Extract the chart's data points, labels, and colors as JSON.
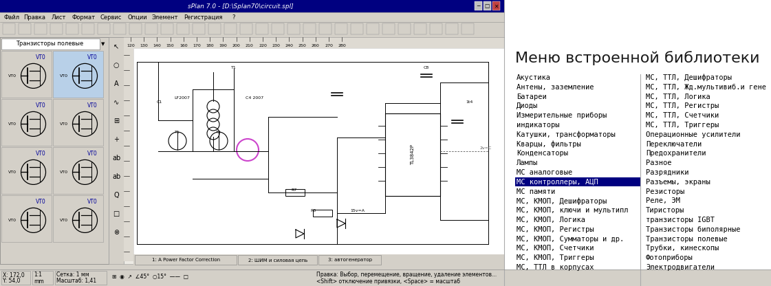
{
  "title": "Меню встроенной библиотеки",
  "title_fontsize": 16,
  "title_color": "#1a1a1a",
  "bg_color": "#d4d0c8",
  "window_title": "sPlan 7.0 - [D:\\Splan70\\circuit.spl]",
  "window_bg": "#d4d0c8",
  "left_column": [
    "Акустика",
    "Антены, заземление",
    "Батареи",
    "Диоды",
    "Измерительные приборы",
    "индикаторы",
    "Катушки, трансформаторы",
    "Кварцы, фильтры",
    "Конденсаторы",
    "Лампы",
    "МС аналоговые",
    "МС контроллеры, АЦП",
    "МС памяти",
    "МС, КМОП, Дешифраторы",
    "МС, КМОП, ключи и мультипл",
    "МС, КМОП, Логика",
    "МС, КМОП, Регистры",
    "МС, КМОП, Сумматоры и др.",
    "МС, КМОП, Счетчики",
    "МС, КМОП, Триггеры",
    "МС, ТТЛ в корпусах"
  ],
  "right_column": [
    "МС, ТТЛ, Дешифраторы",
    "МС, ТТЛ, Жд.мультивиб.и гене",
    "МС, ТТЛ, Логика",
    "МС, ТТЛ, Регистры",
    "МС, ТТЛ, Счетчики",
    "МС, ТТЛ, Триггеры",
    "Операционные усилители",
    "Переключатели",
    "Предохранители",
    "Разное",
    "Разрядники",
    "Разъемы, экраны",
    "Резисторы",
    "Реле, ЭМ",
    "Тиристоры",
    "транзисторы IGBT",
    "Транзисторы биполярные",
    "Транзисторы полевые",
    "Трубки, кинескопы",
    "Фотоприборы",
    "Электродвигатели"
  ],
  "highlighted_item": "МС контроллеры, АЦП",
  "highlight_bg": "#000080",
  "highlight_fg": "#ffffff",
  "item_fontsize": 7.5,
  "item_font": "monospace",
  "tabs": [
    "1: A Power Factor Correction",
    "2: ШИМ и силовая цепь",
    "3: автогенератор"
  ],
  "menu_items": [
    "Файл",
    "Правка",
    "Лист",
    "Формат",
    "Сервис",
    "Опции",
    "Элемент",
    "Регистрация",
    "?"
  ]
}
